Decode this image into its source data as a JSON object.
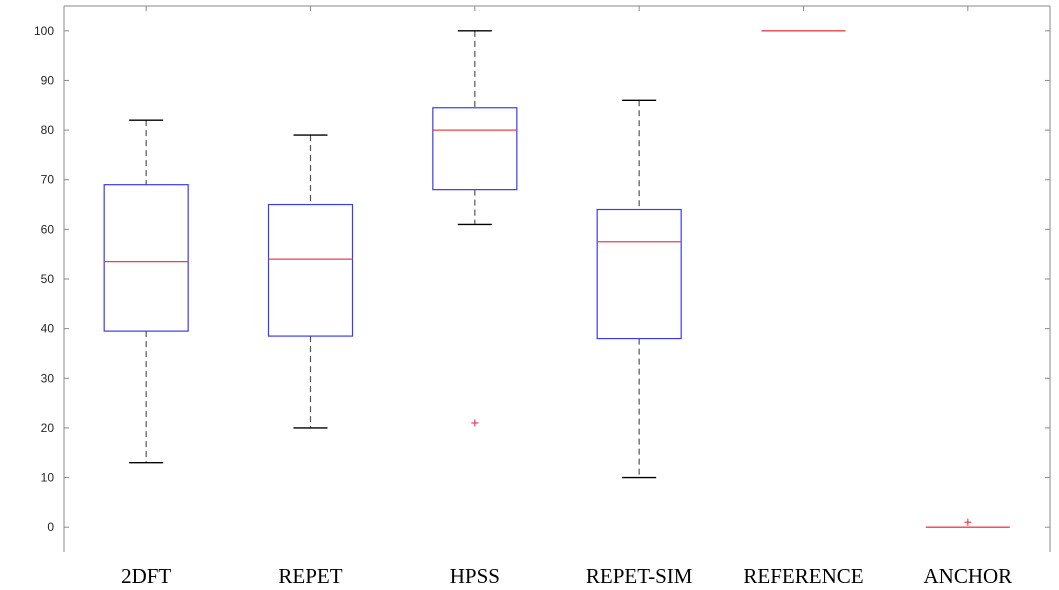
{
  "chart_data": {
    "type": "box",
    "categories": [
      "2DFT",
      "REPET",
      "HPSS",
      "REPET-SIM",
      "REFERENCE",
      "ANCHOR"
    ],
    "boxes": [
      {
        "label": "2DFT",
        "whisker_low": 13,
        "q1": 39.5,
        "median": 53.5,
        "q3": 69,
        "whisker_high": 82,
        "outliers": []
      },
      {
        "label": "REPET",
        "whisker_low": 20,
        "q1": 38.5,
        "median": 54,
        "q3": 65,
        "whisker_high": 79,
        "outliers": []
      },
      {
        "label": "HPSS",
        "whisker_low": 61,
        "q1": 68,
        "median": 80,
        "q3": 84.5,
        "whisker_high": 100,
        "outliers": [
          21
        ]
      },
      {
        "label": "REPET-SIM",
        "whisker_low": 10,
        "q1": 38,
        "median": 57.5,
        "q3": 64,
        "whisker_high": 86,
        "outliers": []
      },
      {
        "label": "REFERENCE",
        "whisker_low": 100,
        "q1": 100,
        "median": 100,
        "q3": 100,
        "whisker_high": 100,
        "outliers": []
      },
      {
        "label": "ANCHOR",
        "whisker_low": 0,
        "q1": 0,
        "median": 0,
        "q3": 0,
        "whisker_high": 0,
        "outliers": [
          1
        ]
      }
    ],
    "yticks": [
      0,
      10,
      20,
      30,
      40,
      50,
      60,
      70,
      80,
      90,
      100
    ],
    "ylim": [
      -5,
      105
    ],
    "title": "",
    "xlabel": "",
    "ylabel": "",
    "grid": false,
    "colors": {
      "box": "#3b3bf0",
      "median": "#e8424a",
      "whisker": "#555555",
      "whisker_cap": "#000000",
      "outlier": "#e8424a",
      "axis": "#8a8a8a"
    }
  }
}
